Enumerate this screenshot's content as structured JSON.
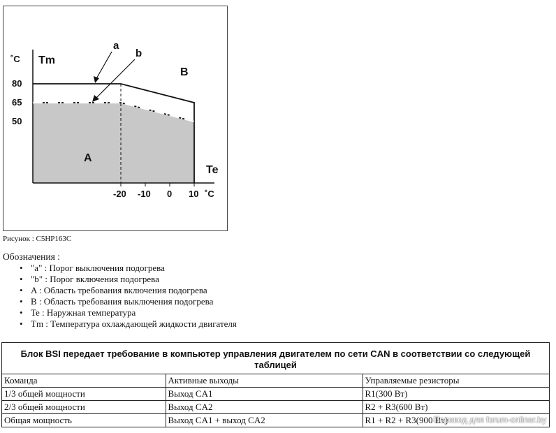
{
  "figure": {
    "y_unit": "˚C",
    "y_symbol": "Tm",
    "x_symbol": "Te",
    "x_unit": "˚C",
    "y_ticks": [
      "80",
      "65",
      "50"
    ],
    "x_ticks": [
      "-20",
      "-10",
      "0",
      "10"
    ],
    "label_a": "a",
    "label_b": "b",
    "region_a": "A",
    "region_b": "B",
    "caption": "Рисунок : C5HP163C",
    "fill_color": "#c8c8c8"
  },
  "legend": {
    "title": "Обозначения :",
    "items": [
      "\"a\" : Порог выключения подогрева",
      "\"b\" : Порог включения подогрева",
      "A : Область требования включения подогрева",
      "B : Область требования выключения подогрева",
      "Te : Наружная температура",
      "Tm : Температура охлаждающей жидкости двигателя"
    ]
  },
  "table": {
    "title": "Блок BSI передает требование в компьютер управления двигателем по сети CAN в соответствии со следующей таблицей",
    "headers": [
      "Команда",
      "Активные выходы",
      "Управляемые резисторы"
    ],
    "rows": [
      [
        "1/3 общей мощности",
        "Выход CA1",
        "R1(300 Вт)"
      ],
      [
        "2/3 общей мощности",
        "Выход CA2",
        "R2 + R3(600 Вт)"
      ],
      [
        "Общая мощность",
        "Выход CA1 + выход CA2",
        "R1 + R2 + R3(900 Вт)"
      ]
    ]
  },
  "watermark": "Перевод для forum-onliner.by"
}
